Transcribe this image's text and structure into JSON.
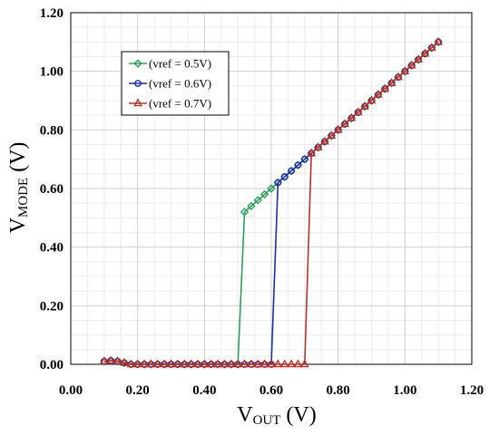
{
  "chart_data": {
    "type": "line",
    "xlabel": {
      "main": "V",
      "sub": "OUT",
      "unit": " (V)"
    },
    "ylabel": {
      "main": "V",
      "sub": "MODE",
      "unit": " (V)"
    },
    "xlim": [
      0,
      1.2
    ],
    "ylim": [
      0,
      1.2
    ],
    "x_ticks": [
      "0.00",
      "0.20",
      "0.40",
      "0.60",
      "0.80",
      "1.00",
      "1.20"
    ],
    "y_ticks": [
      "0.00",
      "0.20",
      "0.40",
      "0.60",
      "0.80",
      "1.00",
      "1.20"
    ],
    "grid": true,
    "legend_position": "top-left",
    "series": [
      {
        "name": "(vref = 0.5V)",
        "color": "#2e9e5b",
        "marker": "diamond",
        "x": [
          0.1,
          0.12,
          0.14,
          0.16,
          0.18,
          0.2,
          0.22,
          0.24,
          0.26,
          0.28,
          0.3,
          0.32,
          0.34,
          0.36,
          0.38,
          0.4,
          0.42,
          0.44,
          0.46,
          0.48,
          0.5,
          0.52,
          0.54,
          0.56,
          0.58,
          0.6,
          0.62,
          0.64,
          0.66,
          0.68,
          0.7,
          0.72,
          0.74,
          0.76,
          0.78,
          0.8,
          0.82,
          0.84,
          0.86,
          0.88,
          0.9,
          0.92,
          0.94,
          0.96,
          0.98,
          1.0,
          1.02,
          1.04,
          1.06,
          1.08,
          1.1
        ],
        "y": [
          0.01,
          0.012,
          0.01,
          0.005,
          0,
          0,
          0,
          0,
          0,
          0,
          0,
          0,
          0,
          0,
          0,
          0,
          0,
          0,
          0,
          0,
          0,
          0.52,
          0.54,
          0.56,
          0.58,
          0.6,
          0.62,
          0.64,
          0.66,
          0.68,
          0.7,
          0.72,
          0.74,
          0.76,
          0.78,
          0.8,
          0.82,
          0.84,
          0.86,
          0.88,
          0.9,
          0.92,
          0.94,
          0.96,
          0.98,
          1.0,
          1.02,
          1.04,
          1.06,
          1.08,
          1.1
        ]
      },
      {
        "name": "(vref = 0.6V)",
        "color": "#1f2fa0",
        "marker": "circle",
        "x": [
          0.1,
          0.12,
          0.14,
          0.16,
          0.18,
          0.2,
          0.22,
          0.24,
          0.26,
          0.28,
          0.3,
          0.32,
          0.34,
          0.36,
          0.38,
          0.4,
          0.42,
          0.44,
          0.46,
          0.48,
          0.5,
          0.52,
          0.54,
          0.56,
          0.58,
          0.6,
          0.62,
          0.64,
          0.66,
          0.68,
          0.7,
          0.72,
          0.74,
          0.76,
          0.78,
          0.8,
          0.82,
          0.84,
          0.86,
          0.88,
          0.9,
          0.92,
          0.94,
          0.96,
          0.98,
          1.0,
          1.02,
          1.04,
          1.06,
          1.08,
          1.1
        ],
        "y": [
          0.01,
          0.012,
          0.01,
          0.005,
          0,
          0,
          0,
          0,
          0,
          0,
          0,
          0,
          0,
          0,
          0,
          0,
          0,
          0,
          0,
          0,
          0,
          0,
          0,
          0,
          0,
          0,
          0.62,
          0.64,
          0.66,
          0.68,
          0.7,
          0.72,
          0.74,
          0.76,
          0.78,
          0.8,
          0.82,
          0.84,
          0.86,
          0.88,
          0.9,
          0.92,
          0.94,
          0.96,
          0.98,
          1.0,
          1.02,
          1.04,
          1.06,
          1.08,
          1.1
        ]
      },
      {
        "name": "(vref = 0.7V)",
        "color": "#b2332b",
        "marker": "triangle",
        "x": [
          0.1,
          0.12,
          0.14,
          0.16,
          0.18,
          0.2,
          0.22,
          0.24,
          0.26,
          0.28,
          0.3,
          0.32,
          0.34,
          0.36,
          0.38,
          0.4,
          0.42,
          0.44,
          0.46,
          0.48,
          0.5,
          0.52,
          0.54,
          0.56,
          0.58,
          0.6,
          0.62,
          0.64,
          0.66,
          0.68,
          0.7,
          0.72,
          0.74,
          0.76,
          0.78,
          0.8,
          0.82,
          0.84,
          0.86,
          0.88,
          0.9,
          0.92,
          0.94,
          0.96,
          0.98,
          1.0,
          1.02,
          1.04,
          1.06,
          1.08,
          1.1
        ],
        "y": [
          0.01,
          0.012,
          0.01,
          0.005,
          0,
          0,
          0,
          0,
          0,
          0,
          0,
          0,
          0,
          0,
          0,
          0,
          0,
          0,
          0,
          0,
          0,
          0,
          0,
          0,
          0,
          0,
          0,
          0,
          0,
          0,
          0,
          0.72,
          0.74,
          0.76,
          0.78,
          0.8,
          0.82,
          0.84,
          0.86,
          0.88,
          0.9,
          0.92,
          0.94,
          0.96,
          0.98,
          1.0,
          1.02,
          1.04,
          1.06,
          1.08,
          1.1
        ]
      }
    ]
  }
}
